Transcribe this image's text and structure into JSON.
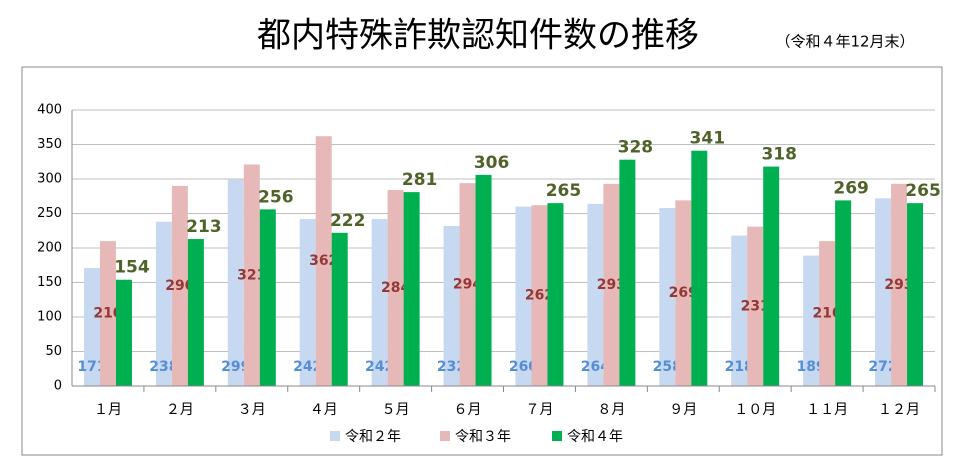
{
  "chart_data": {
    "type": "bar",
    "title": "都内特殊詐欺認知件数の推移",
    "subtitle": "（令和４年12月末）",
    "categories": [
      "１月",
      "２月",
      "３月",
      "４月",
      "５月",
      "６月",
      "７月",
      "８月",
      "９月",
      "１０月",
      "１１月",
      "１２月"
    ],
    "series": [
      {
        "name": "令和２年",
        "color": "#c6d9f1",
        "values": [
          171,
          238,
          299,
          242,
          242,
          232,
          260,
          264,
          258,
          218,
          189,
          272
        ]
      },
      {
        "name": "令和３年",
        "color": "#e6b9b8",
        "values": [
          210,
          290,
          321,
          362,
          284,
          294,
          262,
          293,
          269,
          231,
          210,
          293
        ]
      },
      {
        "name": "令和４年",
        "color": "#00b050",
        "values": [
          154,
          213,
          256,
          222,
          281,
          306,
          265,
          328,
          341,
          318,
          269,
          265
        ]
      }
    ],
    "ylim": [
      0,
      400
    ],
    "yticks": [
      0,
      50,
      100,
      150,
      200,
      250,
      300,
      350,
      400
    ],
    "grid": true,
    "legend": "bottom"
  }
}
